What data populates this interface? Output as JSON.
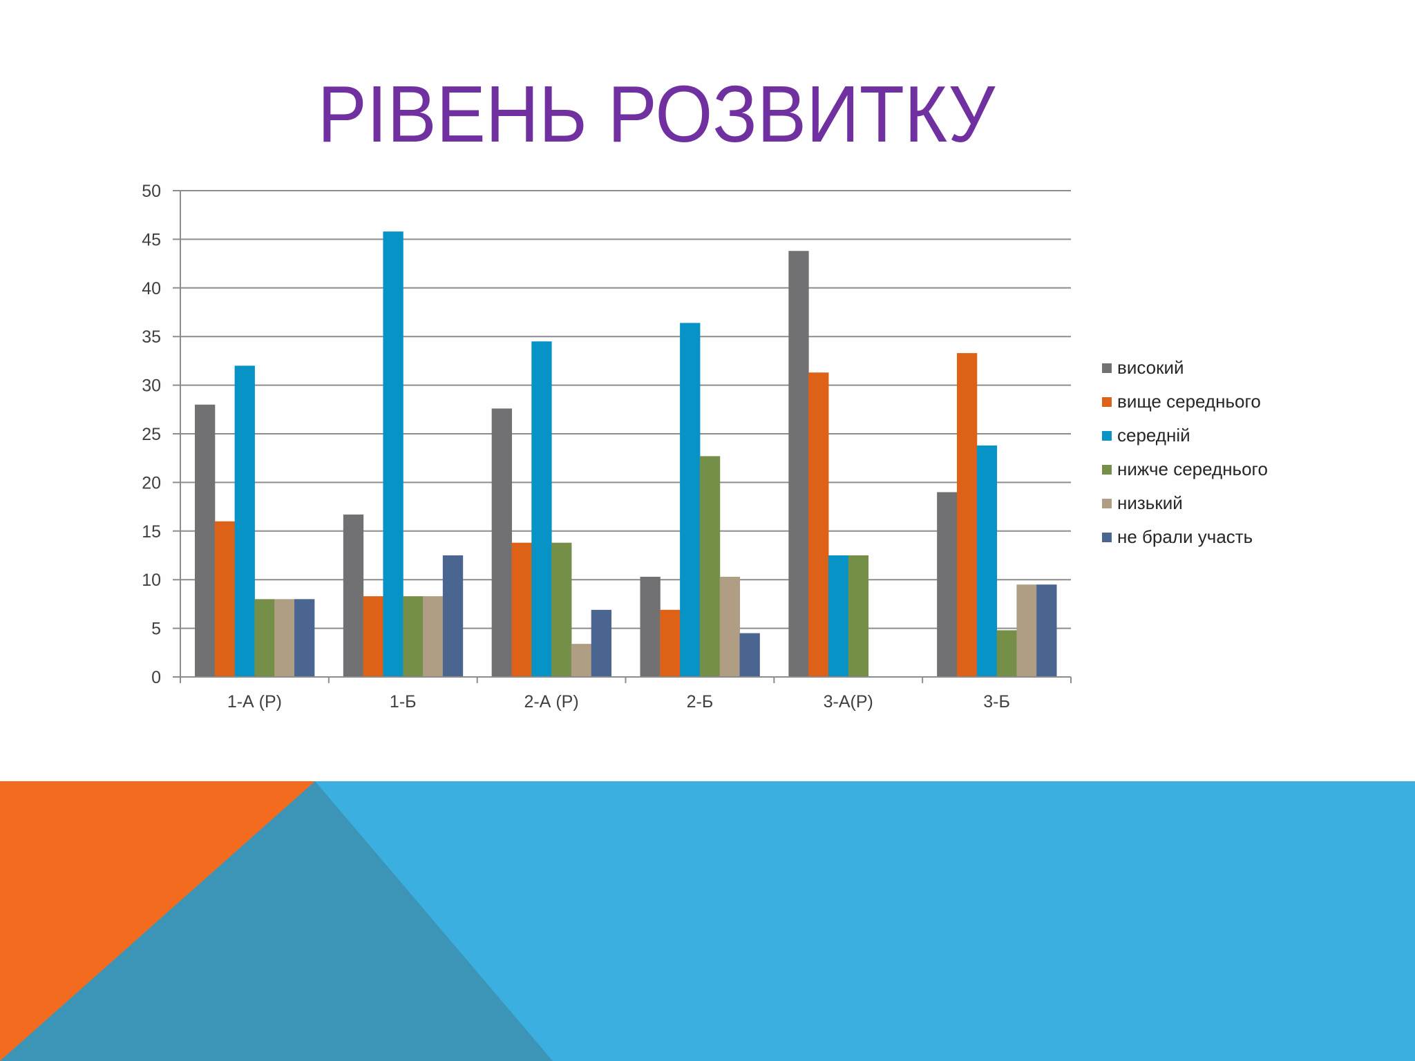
{
  "slide": {
    "title": "РІВЕНЬ РОЗВИТКУ"
  },
  "colors": {
    "title": "#7030a0",
    "grid": "#8c8c8c",
    "axis_text": "#404040",
    "band_orange": "#f26b1f",
    "band_light_blue": "#3bb0e0",
    "band_dark_teal": "#3c94b6"
  },
  "legend": {
    "items": [
      {
        "label": "високий",
        "color": "#717174"
      },
      {
        "label": "вище середнього",
        "color": "#dd6218"
      },
      {
        "label": "середній",
        "color": "#0893c6"
      },
      {
        "label": "нижче середнього",
        "color": "#758e48"
      },
      {
        "label": "низький",
        "color": "#b09e84"
      },
      {
        "label": "не брали участь",
        "color": "#4a6590"
      }
    ]
  },
  "chart_data": {
    "type": "bar",
    "title": "РІВЕНЬ РОЗВИТКУ",
    "xlabel": "",
    "ylabel": "",
    "ylim": [
      0,
      50
    ],
    "yticks": [
      0,
      5,
      10,
      15,
      20,
      25,
      30,
      35,
      40,
      45,
      50
    ],
    "grid": true,
    "legend_position": "right",
    "categories": [
      "1-А (Р)",
      "1-Б",
      "2-А (Р)",
      "2-Б",
      "3-А(Р)",
      "3-Б"
    ],
    "series": [
      {
        "name": "високий",
        "color": "#717174",
        "values": [
          28,
          16.7,
          27.6,
          10.3,
          43.8,
          19.0
        ]
      },
      {
        "name": "вище середнього",
        "color": "#dd6218",
        "values": [
          16,
          8.3,
          13.8,
          6.9,
          31.3,
          33.3
        ]
      },
      {
        "name": "середній",
        "color": "#0893c6",
        "values": [
          32,
          45.8,
          34.5,
          36.4,
          12.5,
          23.8
        ]
      },
      {
        "name": "нижче середнього",
        "color": "#758e48",
        "values": [
          8,
          8.3,
          13.8,
          22.7,
          12.5,
          4.8
        ]
      },
      {
        "name": "низький",
        "color": "#b09e84",
        "values": [
          8,
          8.3,
          3.4,
          10.3,
          0,
          9.5
        ]
      },
      {
        "name": "не брали участь",
        "color": "#4a6590",
        "values": [
          8,
          12.5,
          6.9,
          4.5,
          0,
          9.5
        ]
      }
    ]
  }
}
